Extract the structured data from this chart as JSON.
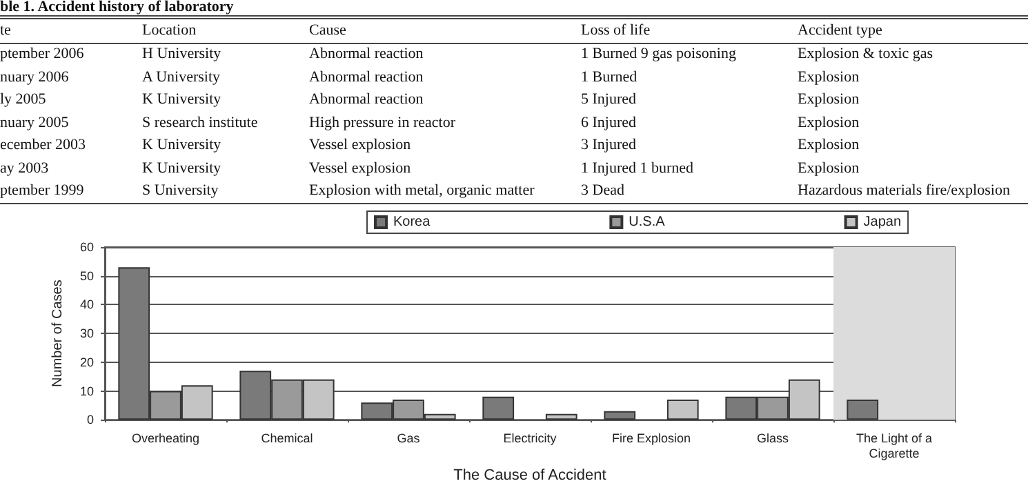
{
  "chart_data": [
    {
      "type": "other",
      "title": "ble 1. Accident history of laboratory",
      "annotations": [
        "te",
        "Location",
        "Cause",
        "Loss of life",
        "Accident type",
        "ptember 2006",
        "H University",
        "Abnormal reaction",
        "1 Burned 9 gas poisoning",
        "Explosion & toxic gas",
        "nuary 2006",
        "A University",
        "Abnormal reaction",
        "1 Burned",
        "Explosion",
        "ly 2005",
        "K University",
        "Abnormal reaction",
        "5 Injured",
        "Explosion",
        "nuary 2005",
        "S research institute",
        "High pressure in reactor",
        "6 Injured",
        "Explosion",
        "ecember 2003",
        "K University",
        "Vessel explosion",
        "3 Injured",
        "Explosion",
        "ay 2003",
        "K University",
        "Vessel explosion",
        "1 Injured 1 burned",
        "Explosion",
        "ptember 1999",
        "S University",
        "Explosion with metal, organic matter",
        "3 Dead",
        "Hazardous materials fire/explosion"
      ]
    },
    {
      "type": "bar",
      "xlabel": "The Cause of Accident",
      "ylabel": "Number of Cases",
      "categories": [
        "Overheating",
        "Chemical",
        "Gas",
        "Electricity",
        "Fire Explosion",
        "Glass",
        "The Light of a\nCigarette"
      ],
      "series": [
        {
          "name": "Korea",
          "color": "#7a7a7a",
          "values": [
            53,
            17,
            6,
            8,
            3,
            8,
            7
          ]
        },
        {
          "name": "U.S.A",
          "color": "#9a9a9a",
          "values": [
            10,
            14,
            7,
            null,
            null,
            8,
            null
          ]
        },
        {
          "name": "Japan",
          "color": "#c4c4c4",
          "values": [
            12,
            14,
            2,
            2,
            7,
            14,
            null
          ]
        }
      ],
      "ylim": [
        0,
        60
      ],
      "yticks": [
        0,
        10,
        20,
        30,
        40,
        50,
        60
      ],
      "grid": "y",
      "legend": "top",
      "bands": [
        {
          "axis": "x",
          "from": "The Light of a\nCigarette",
          "to": "The Light of a\nCigarette",
          "color": "#dcdcdc"
        }
      ]
    }
  ]
}
